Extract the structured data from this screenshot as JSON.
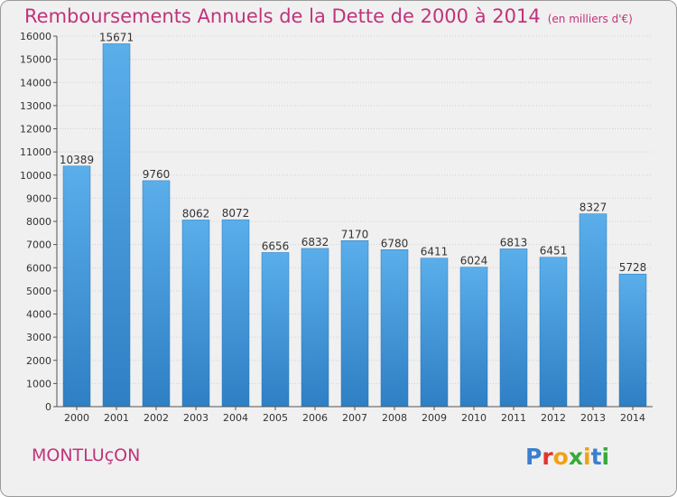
{
  "chart_data": {
    "type": "bar",
    "title": "Remboursements Annuels de la Dette de 2000 à 2014",
    "subtitle": "(en milliers d'€)",
    "categories": [
      "2000",
      "2001",
      "2002",
      "2003",
      "2004",
      "2005",
      "2006",
      "2007",
      "2008",
      "2009",
      "2010",
      "2011",
      "2012",
      "2013",
      "2014"
    ],
    "values": [
      10389,
      15671,
      9760,
      8062,
      8072,
      6656,
      6832,
      7170,
      6780,
      6411,
      6024,
      6813,
      6451,
      8327,
      5728
    ],
    "ylim": [
      0,
      16000
    ],
    "yticks": [
      0,
      1000,
      2000,
      3000,
      4000,
      5000,
      6000,
      7000,
      8000,
      9000,
      10000,
      11000,
      12000,
      13000,
      14000,
      15000,
      16000
    ],
    "xlabel": "",
    "ylabel": "",
    "grid": true,
    "bar_color": "#3b8fd6"
  },
  "footer": {
    "city": "MONTLUçON",
    "logo_text": "Proxiti",
    "logo_letters": [
      {
        "ch": "P",
        "color": "#3a7fd0"
      },
      {
        "ch": "r",
        "color": "#e2342c"
      },
      {
        "ch": "o",
        "color": "#f2a117"
      },
      {
        "ch": "x",
        "color": "#3aa93a"
      },
      {
        "ch": "i",
        "color": "#f2a117"
      },
      {
        "ch": "t",
        "color": "#3a7fd0"
      },
      {
        "ch": "i",
        "color": "#3aa93a"
      }
    ]
  }
}
